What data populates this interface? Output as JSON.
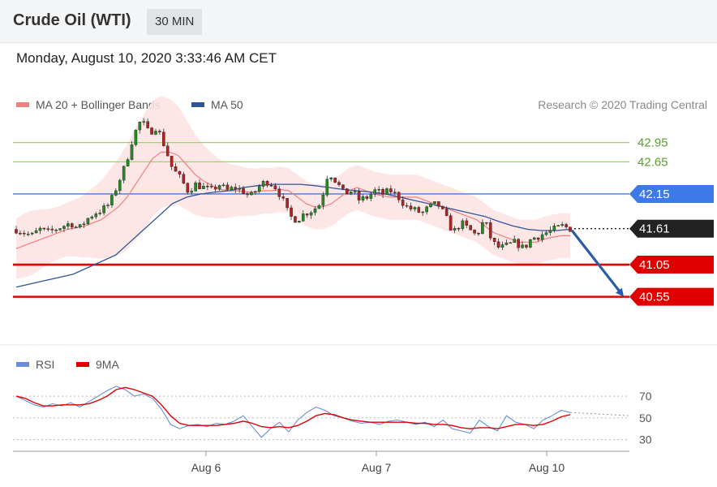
{
  "header": {
    "title": "Crude Oil (WTI)",
    "timeframe": "30 MIN"
  },
  "datetime": "Monday, August 10, 2020 3:33:46 AM CET",
  "legend": {
    "bollinger": {
      "label": "MA 20 + Bollinger Bands",
      "color": "#f08080"
    },
    "ma50": {
      "label": "MA 50",
      "color": "#2f5597"
    },
    "rsi": {
      "label": "RSI",
      "color": "#6a8fd8"
    },
    "rsi_ma": {
      "label": "9MA",
      "color": "#e00000"
    }
  },
  "credit": "Research © 2020 Trading Central",
  "colors": {
    "up": "#228b22",
    "down": "#b22222",
    "resistance": "#3d7ae8",
    "support": "#e00000",
    "target": "#9bd36c",
    "current": "#222222",
    "arrow": "#2a5ba8",
    "band_fill": "#fde3e3"
  },
  "chart_data": [
    {
      "type": "candlestick",
      "title": "",
      "x_ticks": [
        "Aug 6",
        "Aug 7",
        "Aug 10"
      ],
      "ylim": [
        39.8,
        43.4
      ],
      "grid": false,
      "levels": [
        {
          "value": 42.95,
          "label": "42.95",
          "kind": "target"
        },
        {
          "value": 42.65,
          "label": "42.65",
          "kind": "target"
        },
        {
          "value": 42.15,
          "label": "42.15",
          "kind": "resistance"
        },
        {
          "value": 41.61,
          "label": "41.61",
          "kind": "current"
        },
        {
          "value": 41.05,
          "label": "41.05",
          "kind": "support"
        },
        {
          "value": 40.55,
          "label": "40.55",
          "kind": "support"
        }
      ],
      "projection": {
        "from": 41.61,
        "to": 40.55,
        "direction": "down"
      },
      "close_path": [
        41.6,
        41.55,
        41.5,
        41.6,
        41.55,
        41.6,
        41.65,
        41.7,
        41.6,
        41.75,
        41.85,
        41.9,
        42.0,
        42.3,
        42.6,
        43.05,
        43.3,
        43.1,
        43.2,
        42.9,
        42.55,
        42.4,
        42.2,
        42.3,
        42.25,
        42.2,
        42.3,
        42.2,
        42.25,
        42.2,
        42.1,
        42.25,
        42.35,
        42.3,
        42.1,
        41.8,
        41.75,
        41.85,
        41.9,
        42.0,
        42.5,
        42.35,
        42.15,
        42.2,
        42.05,
        42.1,
        42.2,
        42.15,
        42.2,
        42.1,
        41.95,
        41.9,
        41.85,
        41.95,
        42.0,
        41.8,
        41.55,
        41.7,
        41.6,
        41.5,
        41.75,
        41.4,
        41.3,
        41.35,
        41.4,
        41.3,
        41.45,
        41.5,
        41.55,
        41.6,
        41.65,
        41.61
      ],
      "ma20": [
        41.3,
        41.35,
        41.4,
        41.45,
        41.5,
        41.55,
        41.6,
        41.62,
        41.65,
        41.7,
        41.75,
        41.85,
        41.95,
        42.1,
        42.3,
        42.5,
        42.7,
        42.8,
        42.8,
        42.75,
        42.6,
        42.45,
        42.35,
        42.28,
        42.22,
        42.2,
        42.2,
        42.18,
        42.18,
        42.2,
        42.2,
        42.22,
        42.2,
        42.1,
        42.0,
        41.95,
        41.95,
        42.0,
        42.1,
        42.2,
        42.25,
        42.2,
        42.15,
        42.12,
        42.1,
        42.1,
        42.1,
        42.1,
        42.05,
        42.0,
        41.95,
        41.9,
        41.85,
        41.8,
        41.75,
        41.65,
        41.55,
        41.5,
        41.45,
        41.4,
        41.4,
        41.4,
        41.45,
        41.48,
        41.5,
        41.5
      ],
      "ma50": [
        40.7,
        40.75,
        40.8,
        40.85,
        40.9,
        41.0,
        41.1,
        41.2,
        41.4,
        41.6,
        41.8,
        42.0,
        42.1,
        42.15,
        42.18,
        42.2,
        42.25,
        42.28,
        42.3,
        42.3,
        42.3,
        42.28,
        42.25,
        42.22,
        42.2,
        42.18,
        42.15,
        42.1,
        42.05,
        42.0,
        41.95,
        41.9,
        41.85,
        41.8,
        41.72,
        41.65,
        41.6,
        41.58,
        41.58,
        41.6
      ]
    },
    {
      "type": "line",
      "title": "RSI",
      "x_ticks": [
        "Aug 6",
        "Aug 7",
        "Aug 10"
      ],
      "y_ticks": [
        70,
        50,
        30
      ],
      "ylim": [
        20,
        85
      ],
      "series": [
        {
          "name": "RSI",
          "values": [
            70,
            66,
            62,
            60,
            63,
            61,
            64,
            60,
            65,
            70,
            75,
            79,
            76,
            70,
            72,
            68,
            58,
            44,
            40,
            43,
            44,
            42,
            45,
            44,
            47,
            52,
            42,
            32,
            40,
            46,
            37,
            48,
            55,
            60,
            57,
            52,
            50,
            47,
            45,
            46,
            44,
            47,
            48,
            46,
            44,
            46,
            42,
            48,
            40,
            38,
            36,
            48,
            42,
            38,
            52,
            46,
            44,
            40,
            48,
            52,
            57,
            55
          ]
        },
        {
          "name": "9MA",
          "values": [
            70,
            68,
            64,
            61,
            61,
            62,
            62,
            62,
            63,
            66,
            70,
            76,
            78,
            76,
            73,
            70,
            62,
            52,
            45,
            43,
            43,
            43,
            43,
            44,
            45,
            47,
            45,
            42,
            41,
            42,
            41,
            43,
            47,
            52,
            54,
            53,
            50,
            48,
            47,
            46,
            46,
            46,
            46,
            46,
            45,
            45,
            44,
            44,
            43,
            41,
            40,
            41,
            41,
            40,
            42,
            44,
            44,
            43,
            44,
            47,
            51,
            53
          ]
        }
      ]
    }
  ]
}
